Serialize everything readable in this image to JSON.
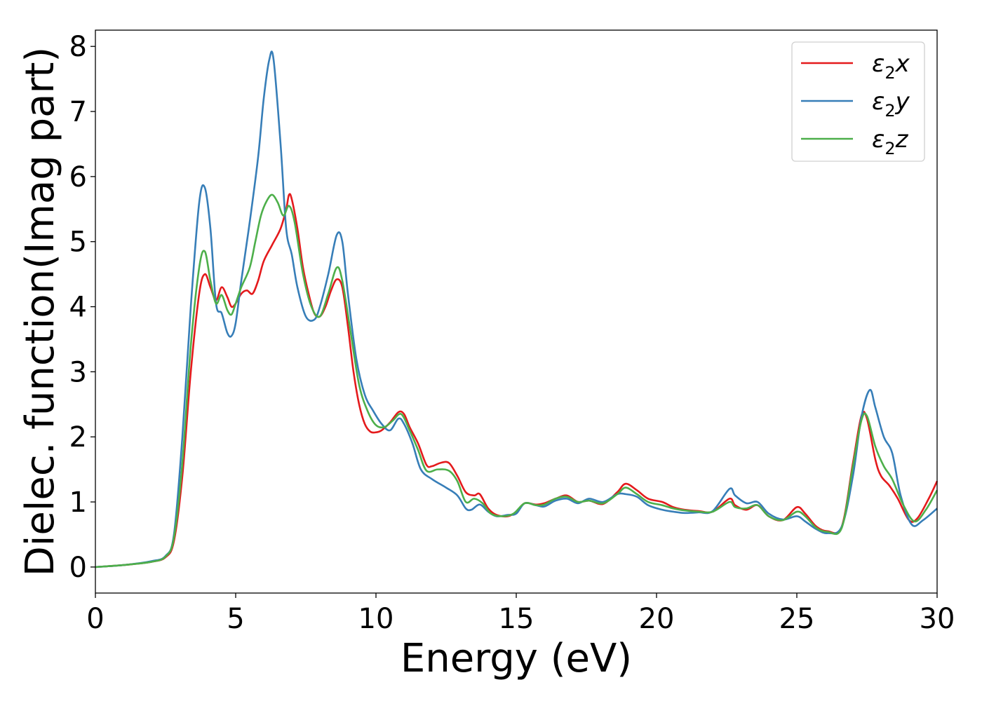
{
  "chart_data": {
    "type": "line",
    "xlabel": "Energy (eV)",
    "ylabel": "Dielec. function(Imag part)",
    "xlim": [
      0,
      30
    ],
    "ylim": [
      -0.4,
      8.25
    ],
    "xticks": [
      0,
      5,
      10,
      15,
      20,
      25,
      30
    ],
    "yticks": [
      0,
      1,
      2,
      3,
      4,
      5,
      6,
      7,
      8
    ],
    "grid": false,
    "legend_placement": "top-right",
    "series": [
      {
        "name": "ε2x",
        "legend_base": "ε",
        "legend_sub": "2",
        "legend_suffix": "x",
        "color": "#e41a1c",
        "points": [
          [
            0,
            0
          ],
          [
            1,
            0.03
          ],
          [
            2,
            0.08
          ],
          [
            2.5,
            0.15
          ],
          [
            2.8,
            0.4
          ],
          [
            3.1,
            1.4
          ],
          [
            3.4,
            3.0
          ],
          [
            3.7,
            4.2
          ],
          [
            3.9,
            4.5
          ],
          [
            4.1,
            4.3
          ],
          [
            4.3,
            4.1
          ],
          [
            4.5,
            4.3
          ],
          [
            4.7,
            4.15
          ],
          [
            4.85,
            4.0
          ],
          [
            5.0,
            4.05
          ],
          [
            5.2,
            4.2
          ],
          [
            5.4,
            4.25
          ],
          [
            5.6,
            4.2
          ],
          [
            5.8,
            4.4
          ],
          [
            6.0,
            4.7
          ],
          [
            6.3,
            4.95
          ],
          [
            6.6,
            5.2
          ],
          [
            6.8,
            5.5
          ],
          [
            6.9,
            5.72
          ],
          [
            7.0,
            5.65
          ],
          [
            7.2,
            5.2
          ],
          [
            7.4,
            4.6
          ],
          [
            7.6,
            4.2
          ],
          [
            7.8,
            3.9
          ],
          [
            8.0,
            3.85
          ],
          [
            8.2,
            4.0
          ],
          [
            8.4,
            4.25
          ],
          [
            8.6,
            4.42
          ],
          [
            8.8,
            4.3
          ],
          [
            9.0,
            3.7
          ],
          [
            9.2,
            3.0
          ],
          [
            9.4,
            2.5
          ],
          [
            9.6,
            2.2
          ],
          [
            9.8,
            2.08
          ],
          [
            10.0,
            2.07
          ],
          [
            10.2,
            2.1
          ],
          [
            10.5,
            2.22
          ],
          [
            10.8,
            2.38
          ],
          [
            11.0,
            2.35
          ],
          [
            11.2,
            2.15
          ],
          [
            11.5,
            1.9
          ],
          [
            11.8,
            1.57
          ],
          [
            12.0,
            1.55
          ],
          [
            12.3,
            1.6
          ],
          [
            12.6,
            1.6
          ],
          [
            12.9,
            1.4
          ],
          [
            13.2,
            1.15
          ],
          [
            13.5,
            1.1
          ],
          [
            13.7,
            1.12
          ],
          [
            14.0,
            0.9
          ],
          [
            14.3,
            0.8
          ],
          [
            14.7,
            0.78
          ],
          [
            15.0,
            0.85
          ],
          [
            15.3,
            0.98
          ],
          [
            15.7,
            0.96
          ],
          [
            16.0,
            0.98
          ],
          [
            16.4,
            1.05
          ],
          [
            16.8,
            1.1
          ],
          [
            17.2,
            1.0
          ],
          [
            17.6,
            1.02
          ],
          [
            18.1,
            0.97
          ],
          [
            18.6,
            1.15
          ],
          [
            18.9,
            1.28
          ],
          [
            19.3,
            1.18
          ],
          [
            19.7,
            1.05
          ],
          [
            20.2,
            1.0
          ],
          [
            20.6,
            0.92
          ],
          [
            21.0,
            0.88
          ],
          [
            21.5,
            0.86
          ],
          [
            22.0,
            0.85
          ],
          [
            22.6,
            1.05
          ],
          [
            22.8,
            0.95
          ],
          [
            23.2,
            0.88
          ],
          [
            23.6,
            0.95
          ],
          [
            24.0,
            0.78
          ],
          [
            24.5,
            0.72
          ],
          [
            25.0,
            0.92
          ],
          [
            25.3,
            0.82
          ],
          [
            25.7,
            0.62
          ],
          [
            26.1,
            0.55
          ],
          [
            26.6,
            0.62
          ],
          [
            27.0,
            1.6
          ],
          [
            27.3,
            2.32
          ],
          [
            27.5,
            2.28
          ],
          [
            27.8,
            1.65
          ],
          [
            28.0,
            1.4
          ],
          [
            28.3,
            1.25
          ],
          [
            28.6,
            1.05
          ],
          [
            29.0,
            0.72
          ],
          [
            29.3,
            0.75
          ],
          [
            29.7,
            1.05
          ],
          [
            30.0,
            1.32
          ]
        ]
      },
      {
        "name": "ε2y",
        "legend_base": "ε",
        "legend_sub": "2",
        "legend_suffix": "y",
        "color": "#377eb8",
        "points": [
          [
            0,
            0
          ],
          [
            1,
            0.03
          ],
          [
            2,
            0.09
          ],
          [
            2.5,
            0.17
          ],
          [
            2.8,
            0.5
          ],
          [
            3.1,
            2.0
          ],
          [
            3.4,
            4.0
          ],
          [
            3.7,
            5.6
          ],
          [
            3.9,
            5.83
          ],
          [
            4.1,
            5.2
          ],
          [
            4.3,
            4.05
          ],
          [
            4.5,
            3.9
          ],
          [
            4.7,
            3.6
          ],
          [
            4.85,
            3.55
          ],
          [
            5.0,
            3.75
          ],
          [
            5.2,
            4.4
          ],
          [
            5.5,
            5.3
          ],
          [
            5.8,
            6.3
          ],
          [
            6.0,
            7.2
          ],
          [
            6.2,
            7.8
          ],
          [
            6.35,
            7.8
          ],
          [
            6.6,
            6.5
          ],
          [
            6.8,
            5.2
          ],
          [
            7.0,
            4.8
          ],
          [
            7.2,
            4.3
          ],
          [
            7.5,
            3.85
          ],
          [
            7.8,
            3.8
          ],
          [
            8.0,
            4.0
          ],
          [
            8.3,
            4.5
          ],
          [
            8.6,
            5.1
          ],
          [
            8.8,
            5.0
          ],
          [
            9.0,
            4.2
          ],
          [
            9.3,
            3.2
          ],
          [
            9.6,
            2.65
          ],
          [
            9.9,
            2.4
          ],
          [
            10.2,
            2.2
          ],
          [
            10.5,
            2.1
          ],
          [
            10.8,
            2.28
          ],
          [
            11.0,
            2.2
          ],
          [
            11.3,
            1.9
          ],
          [
            11.6,
            1.5
          ],
          [
            12.0,
            1.35
          ],
          [
            12.5,
            1.22
          ],
          [
            12.9,
            1.1
          ],
          [
            13.2,
            0.9
          ],
          [
            13.4,
            0.88
          ],
          [
            13.7,
            0.96
          ],
          [
            14.0,
            0.85
          ],
          [
            14.3,
            0.78
          ],
          [
            14.7,
            0.8
          ],
          [
            15.0,
            0.82
          ],
          [
            15.3,
            0.98
          ],
          [
            15.7,
            0.95
          ],
          [
            16.0,
            0.93
          ],
          [
            16.4,
            1.02
          ],
          [
            16.8,
            1.05
          ],
          [
            17.2,
            0.98
          ],
          [
            17.6,
            1.05
          ],
          [
            18.1,
            1.0
          ],
          [
            18.6,
            1.12
          ],
          [
            18.9,
            1.12
          ],
          [
            19.3,
            1.08
          ],
          [
            19.7,
            0.95
          ],
          [
            20.2,
            0.88
          ],
          [
            20.6,
            0.85
          ],
          [
            21.0,
            0.83
          ],
          [
            21.5,
            0.84
          ],
          [
            22.0,
            0.86
          ],
          [
            22.6,
            1.2
          ],
          [
            22.8,
            1.1
          ],
          [
            23.2,
            0.98
          ],
          [
            23.6,
            1.0
          ],
          [
            24.0,
            0.82
          ],
          [
            24.5,
            0.73
          ],
          [
            25.0,
            0.78
          ],
          [
            25.3,
            0.7
          ],
          [
            25.7,
            0.58
          ],
          [
            26.1,
            0.52
          ],
          [
            26.6,
            0.62
          ],
          [
            27.0,
            1.4
          ],
          [
            27.3,
            2.3
          ],
          [
            27.6,
            2.72
          ],
          [
            27.8,
            2.45
          ],
          [
            28.1,
            2.0
          ],
          [
            28.4,
            1.75
          ],
          [
            28.7,
            1.1
          ],
          [
            29.1,
            0.65
          ],
          [
            29.5,
            0.72
          ],
          [
            30.0,
            0.9
          ]
        ]
      },
      {
        "name": "ε2z",
        "legend_base": "ε",
        "legend_sub": "2",
        "legend_suffix": "z",
        "color": "#4daf4a",
        "points": [
          [
            0,
            0
          ],
          [
            1,
            0.03
          ],
          [
            2,
            0.08
          ],
          [
            2.5,
            0.16
          ],
          [
            2.8,
            0.45
          ],
          [
            3.1,
            1.6
          ],
          [
            3.4,
            3.4
          ],
          [
            3.7,
            4.6
          ],
          [
            3.9,
            4.85
          ],
          [
            4.1,
            4.4
          ],
          [
            4.3,
            4.05
          ],
          [
            4.5,
            4.18
          ],
          [
            4.7,
            3.95
          ],
          [
            4.85,
            3.88
          ],
          [
            5.0,
            4.05
          ],
          [
            5.2,
            4.3
          ],
          [
            5.5,
            4.6
          ],
          [
            5.7,
            5.0
          ],
          [
            5.9,
            5.4
          ],
          [
            6.1,
            5.62
          ],
          [
            6.3,
            5.72
          ],
          [
            6.5,
            5.6
          ],
          [
            6.7,
            5.4
          ],
          [
            6.9,
            5.55
          ],
          [
            7.1,
            5.3
          ],
          [
            7.4,
            4.5
          ],
          [
            7.7,
            4.0
          ],
          [
            8.0,
            3.85
          ],
          [
            8.3,
            4.2
          ],
          [
            8.6,
            4.6
          ],
          [
            8.8,
            4.4
          ],
          [
            9.1,
            3.6
          ],
          [
            9.4,
            2.8
          ],
          [
            9.7,
            2.4
          ],
          [
            10.0,
            2.18
          ],
          [
            10.3,
            2.15
          ],
          [
            10.6,
            2.25
          ],
          [
            10.9,
            2.35
          ],
          [
            11.2,
            2.1
          ],
          [
            11.5,
            1.8
          ],
          [
            11.8,
            1.48
          ],
          [
            12.2,
            1.5
          ],
          [
            12.6,
            1.48
          ],
          [
            12.9,
            1.32
          ],
          [
            13.2,
            1.0
          ],
          [
            13.5,
            1.05
          ],
          [
            13.8,
            0.98
          ],
          [
            14.1,
            0.82
          ],
          [
            14.5,
            0.78
          ],
          [
            14.9,
            0.82
          ],
          [
            15.3,
            0.98
          ],
          [
            15.7,
            0.95
          ],
          [
            16.0,
            0.96
          ],
          [
            16.4,
            1.05
          ],
          [
            16.8,
            1.08
          ],
          [
            17.2,
            1.0
          ],
          [
            17.6,
            1.02
          ],
          [
            18.1,
            0.98
          ],
          [
            18.6,
            1.12
          ],
          [
            18.9,
            1.22
          ],
          [
            19.3,
            1.12
          ],
          [
            19.7,
            1.0
          ],
          [
            20.2,
            0.95
          ],
          [
            20.6,
            0.9
          ],
          [
            21.0,
            0.87
          ],
          [
            21.5,
            0.85
          ],
          [
            22.0,
            0.85
          ],
          [
            22.6,
            1.0
          ],
          [
            22.8,
            0.92
          ],
          [
            23.2,
            0.9
          ],
          [
            23.6,
            0.95
          ],
          [
            24.0,
            0.78
          ],
          [
            24.5,
            0.72
          ],
          [
            25.0,
            0.85
          ],
          [
            25.3,
            0.78
          ],
          [
            25.7,
            0.6
          ],
          [
            26.1,
            0.54
          ],
          [
            26.6,
            0.6
          ],
          [
            27.0,
            1.55
          ],
          [
            27.3,
            2.25
          ],
          [
            27.5,
            2.32
          ],
          [
            27.8,
            1.85
          ],
          [
            28.1,
            1.55
          ],
          [
            28.4,
            1.35
          ],
          [
            28.8,
            0.95
          ],
          [
            29.2,
            0.7
          ],
          [
            29.6,
            0.88
          ],
          [
            30.0,
            1.18
          ]
        ]
      }
    ]
  }
}
